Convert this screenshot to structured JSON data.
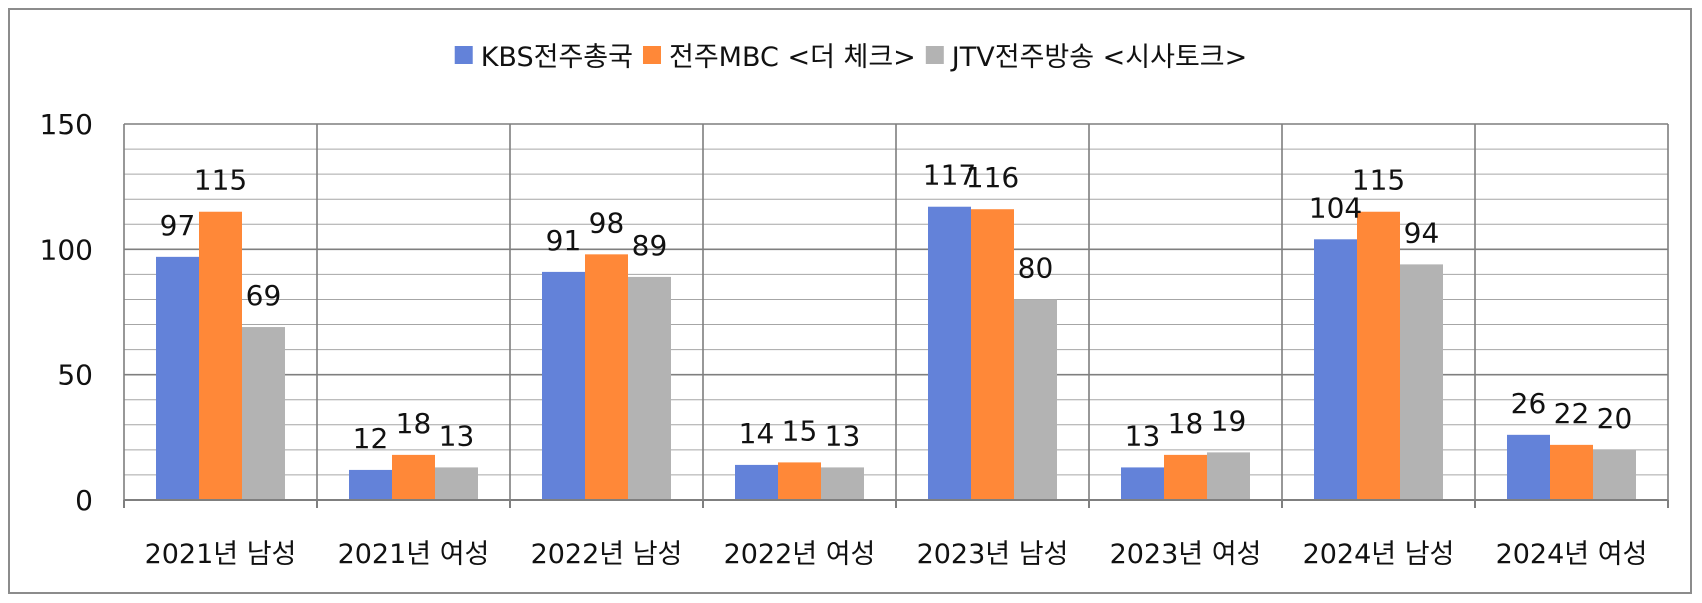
{
  "colors": {
    "series": [
      "#6382d9",
      "#ff8838",
      "#b3b3b3"
    ],
    "major_grid": "#7f7f7f",
    "minor_grid": "#a6a6a6",
    "frame": "#8c8c8c"
  },
  "chart_data": {
    "type": "bar",
    "title": "",
    "xlabel": "",
    "ylabel": "",
    "ylim": [
      0,
      150
    ],
    "y_ticks": [
      "0",
      "50",
      "100",
      "150"
    ],
    "grid": true,
    "legend_position": "top",
    "categories": [
      "2021년 남성",
      "2021년 여성",
      "2022년 남성",
      "2022년 여성",
      "2023년 남성",
      "2023년 여성",
      "2024년 남성",
      "2024년 여성"
    ],
    "series": [
      {
        "name": "KBS전주총국",
        "values": [
          97,
          12,
          91,
          14,
          117,
          13,
          104,
          26
        ]
      },
      {
        "name": "전주MBC <더 체크>",
        "values": [
          115,
          18,
          98,
          15,
          116,
          18,
          115,
          22
        ]
      },
      {
        "name": "JTV전주방송 <시사토크>",
        "values": [
          69,
          13,
          89,
          13,
          80,
          19,
          94,
          20
        ]
      }
    ]
  }
}
